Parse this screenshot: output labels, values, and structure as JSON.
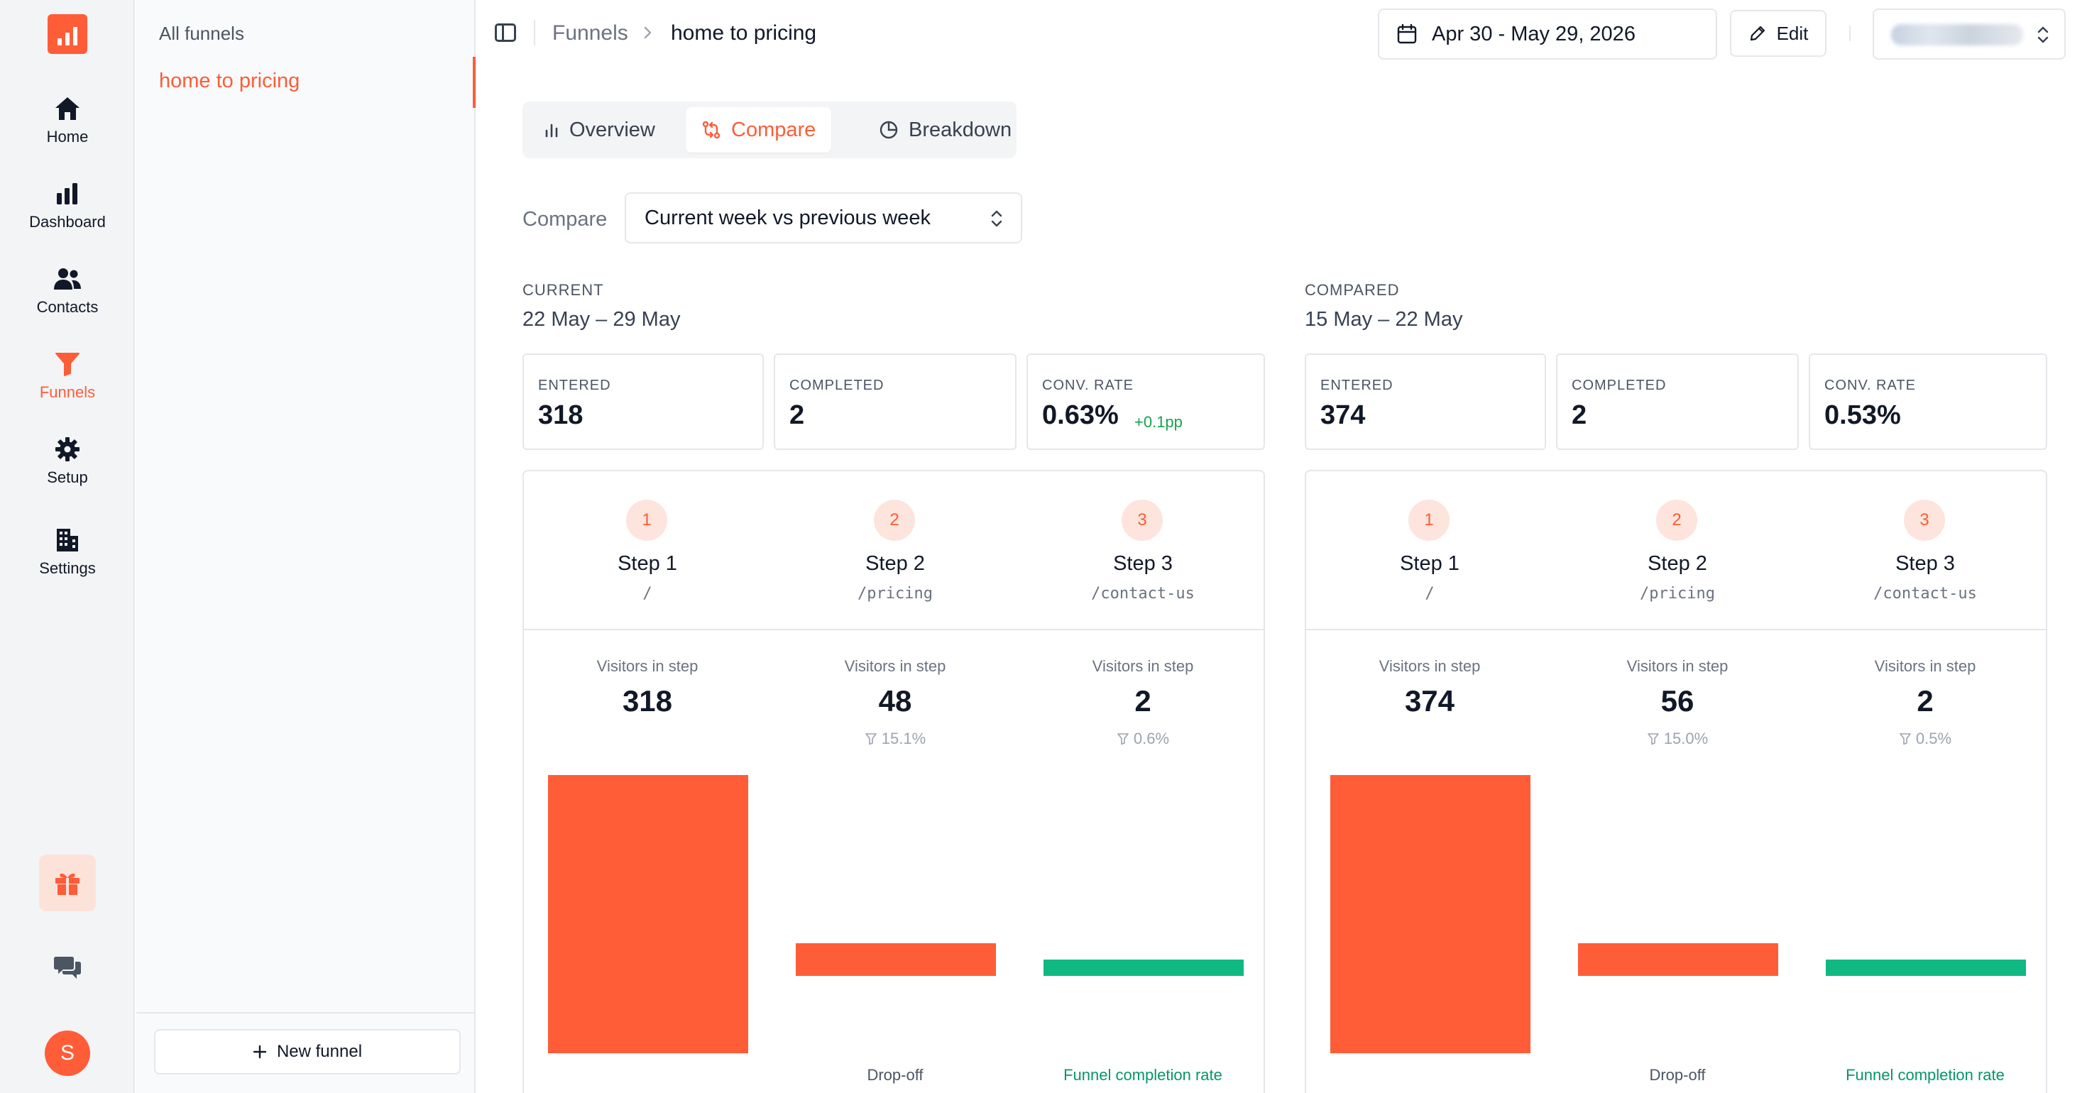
{
  "nav": {
    "items": [
      {
        "label": "Home",
        "icon": "home-icon"
      },
      {
        "label": "Dashboard",
        "icon": "bar-chart-icon"
      },
      {
        "label": "Contacts",
        "icon": "users-icon"
      },
      {
        "label": "Funnels",
        "icon": "funnel-icon",
        "active": true
      },
      {
        "label": "Setup",
        "icon": "gear-icon"
      },
      {
        "label": "Settings",
        "icon": "building-icon"
      }
    ],
    "avatar_initial": "S",
    "accent": "#ff5c38"
  },
  "funnel_list": {
    "heading": "All funnels",
    "items": [
      "home to pricing"
    ],
    "new_button": "New funnel"
  },
  "header": {
    "breadcrumb_root": "Funnels",
    "breadcrumb_current": "home to pricing",
    "date_range": "Apr 30 - May 29, 2026",
    "edit_label": "Edit"
  },
  "tabs": [
    {
      "label": "Overview"
    },
    {
      "label": "Compare",
      "active": true
    },
    {
      "label": "Breakdown"
    }
  ],
  "compare": {
    "label": "Compare",
    "selected": "Current week vs previous week"
  },
  "periods": [
    {
      "tag": "CURRENT",
      "range": "22 May – 29 May",
      "stats": {
        "entered_label": "ENTERED",
        "entered": "318",
        "completed_label": "COMPLETED",
        "completed": "2",
        "rate_label": "CONV. RATE",
        "rate": "0.63%",
        "delta": "+0.1pp"
      },
      "steps": [
        {
          "num": "1",
          "name": "Step 1",
          "path": "/",
          "visitors_label": "Visitors in step",
          "count": "318",
          "rate": "",
          "foot": "",
          "visitors": 318
        },
        {
          "num": "2",
          "name": "Step 2",
          "path": "/pricing",
          "visitors_label": "Visitors in step",
          "count": "48",
          "rate": "15.1%",
          "foot": "Drop-off",
          "visitors": 48
        },
        {
          "num": "3",
          "name": "Step 3",
          "path": "/contact-us",
          "visitors_label": "Visitors in step",
          "count": "2",
          "rate": "0.6%",
          "foot": "Funnel completion rate",
          "visitors": 2
        }
      ]
    },
    {
      "tag": "COMPARED",
      "range": "15 May – 22 May",
      "stats": {
        "entered_label": "ENTERED",
        "entered": "374",
        "completed_label": "COMPLETED",
        "completed": "2",
        "rate_label": "CONV. RATE",
        "rate": "0.53%",
        "delta": ""
      },
      "steps": [
        {
          "num": "1",
          "name": "Step 1",
          "path": "/",
          "visitors_label": "Visitors in step",
          "count": "374",
          "rate": "",
          "foot": "",
          "visitors": 374
        },
        {
          "num": "2",
          "name": "Step 2",
          "path": "/pricing",
          "visitors_label": "Visitors in step",
          "count": "56",
          "rate": "15.0%",
          "foot": "Drop-off",
          "visitors": 56
        },
        {
          "num": "3",
          "name": "Step 3",
          "path": "/contact-us",
          "visitors_label": "Visitors in step",
          "count": "2",
          "rate": "0.5%",
          "foot": "Funnel completion rate",
          "visitors": 2
        }
      ]
    }
  ],
  "colors": {
    "accent": "#ff5c38",
    "completion": "#10b981",
    "positive_delta": "#16a34a"
  }
}
